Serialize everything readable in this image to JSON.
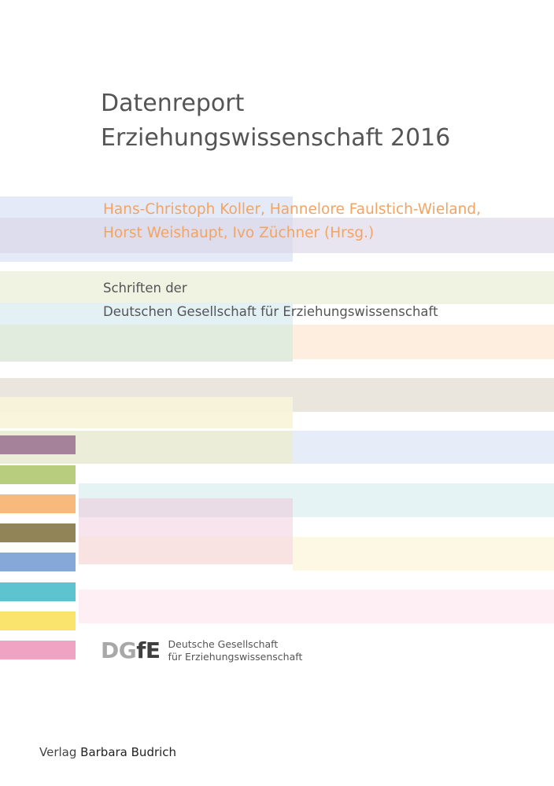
{
  "cover": {
    "title_line1": "Datenreport",
    "title_line2": "Erziehungswissenschaft 2016",
    "authors_line1": "Hans-Christoph Koller, Hannelore Faulstich-Wieland,",
    "authors_line2": "Horst Weishaupt, Ivo Züchner (Hrsg.)",
    "series_line1": "Schriften der",
    "series_line2": "Deutschen Gesellschaft für Erziehungswissenschaft"
  },
  "logo": {
    "mark_part1": "DG",
    "mark_part2": "fE",
    "name_line1": "Deutsche Gesellschaft",
    "name_line2": "für Erziehungswissenschaft"
  },
  "publisher": {
    "prefix": "Verlag",
    "name": "Barbara Budrich"
  },
  "colors": {
    "author_text": "#f2a465",
    "swatches": [
      "#a6829a",
      "#b8cd7e",
      "#f7b97c",
      "#918457",
      "#85a8d8",
      "#5cc3cf",
      "#fbe46d",
      "#f0a3c3"
    ]
  }
}
